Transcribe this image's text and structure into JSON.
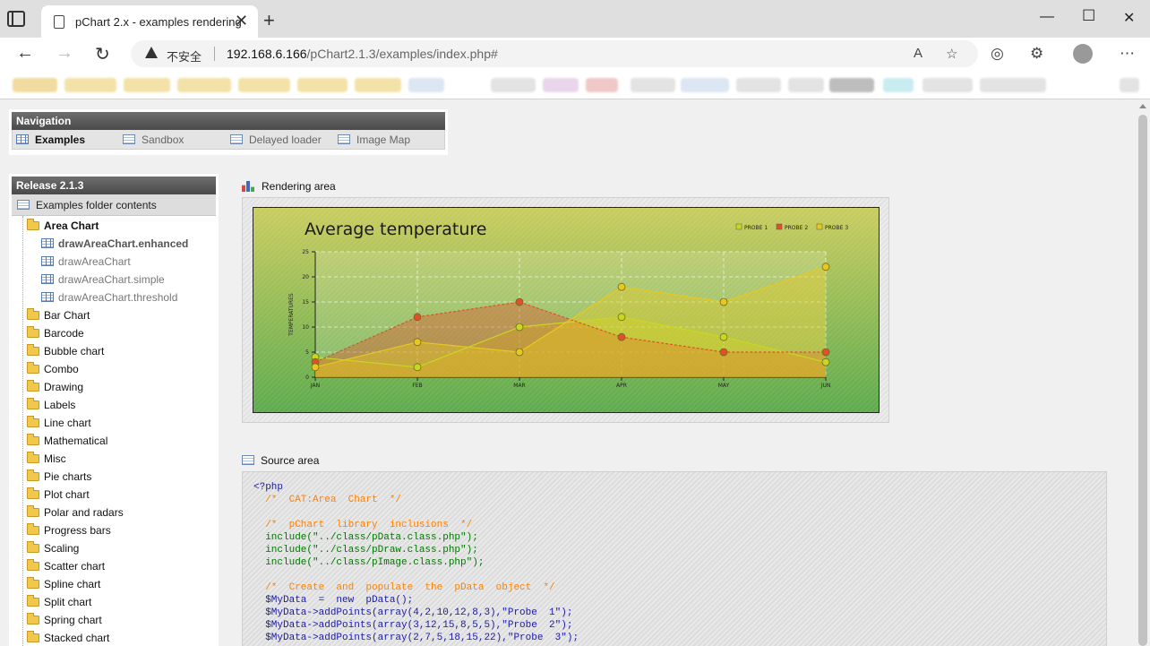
{
  "browser": {
    "tab_title": "pChart 2.x - examples rendering",
    "security_label": "不安全",
    "url_host": "192.168.6.166",
    "url_path": "/pChart2.1.3/examples/index.php#"
  },
  "navigation": {
    "title": "Navigation",
    "items": [
      {
        "label": "Examples",
        "active": true,
        "icon": "grid-icon"
      },
      {
        "label": "Sandbox",
        "active": false,
        "icon": "doc-icon"
      },
      {
        "label": "Delayed loader",
        "active": false,
        "icon": "doc-icon"
      },
      {
        "label": "Image Map",
        "active": false,
        "icon": "doc-icon"
      }
    ]
  },
  "release": {
    "title": "Release 2.1.3",
    "subtitle": "Examples folder contents",
    "open_folder": "Area Chart",
    "files": [
      "drawAreaChart.enhanced",
      "drawAreaChart",
      "drawAreaChart.simple",
      "drawAreaChart.threshold"
    ],
    "current_file": "drawAreaChart.enhanced",
    "folders": [
      "Bar Chart",
      "Barcode",
      "Bubble chart",
      "Combo",
      "Drawing",
      "Labels",
      "Line chart",
      "Mathematical",
      "Misc",
      "Pie charts",
      "Plot chart",
      "Polar and radars",
      "Progress bars",
      "Scaling",
      "Scatter chart",
      "Spline chart",
      "Split chart",
      "Spring chart",
      "Stacked chart"
    ]
  },
  "rendering": {
    "label": "Rendering area"
  },
  "chart_data": {
    "type": "area",
    "title": "Average temperature",
    "ylabel": "TEMPERATURES",
    "xlabel": "",
    "categories": [
      "JAN",
      "FEB",
      "MAR",
      "APR",
      "MAY",
      "JUN"
    ],
    "ylim": [
      0,
      25
    ],
    "yticks": [
      0,
      5,
      10,
      15,
      20,
      25
    ],
    "grid": true,
    "legend_position": "top-right",
    "series": [
      {
        "name": "PROBE 1",
        "values": [
          4,
          2,
          10,
          12,
          8,
          3
        ],
        "color": "#c8d820"
      },
      {
        "name": "PROBE 2",
        "values": [
          3,
          12,
          15,
          8,
          5,
          5
        ],
        "color": "#e0502a"
      },
      {
        "name": "PROBE 3",
        "values": [
          2,
          7,
          5,
          18,
          15,
          22
        ],
        "color": "#e8c820"
      }
    ],
    "background_colors": [
      "#c9cc5e",
      "#5caa4c"
    ]
  },
  "source": {
    "label": "Source area",
    "lines": [
      {
        "cls": "c-tag",
        "text": "<?php"
      },
      {
        "cls": "c-cmt",
        "text": "  /*  CAT:Area  Chart  */"
      },
      {
        "cls": "",
        "text": ""
      },
      {
        "cls": "c-cmt",
        "text": "  /*  pChart  library  inclusions  */"
      },
      {
        "cls": "c-inc",
        "text": "  include(\"../class/pData.class.php\");"
      },
      {
        "cls": "c-inc",
        "text": "  include(\"../class/pDraw.class.php\");"
      },
      {
        "cls": "c-inc",
        "text": "  include(\"../class/pImage.class.php\");"
      },
      {
        "cls": "",
        "text": ""
      },
      {
        "cls": "c-cmt",
        "text": "  /*  Create  and  populate  the  pData  object  */"
      },
      {
        "cls": "c-var",
        "text": "  $MyData  =  new  pData();"
      },
      {
        "cls": "c-var",
        "text": "  $MyData->addPoints(array(4,2,10,12,8,3),\"Probe  1\");"
      },
      {
        "cls": "c-var",
        "text": "  $MyData->addPoints(array(3,12,15,8,5,5),\"Probe  2\");"
      },
      {
        "cls": "c-var",
        "text": "  $MyData->addPoints(array(2,7,5,18,15,22),\"Probe  3\");"
      }
    ]
  }
}
